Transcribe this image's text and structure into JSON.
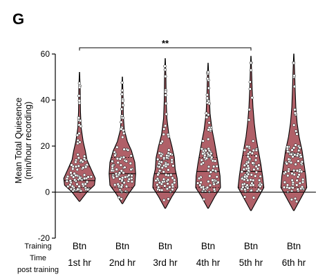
{
  "panel_label": "G",
  "chart_data": {
    "type": "violin",
    "ylabel_line1": "Mean Total Quiesence",
    "ylabel_line2": "(min/hour recording)",
    "ylim": [
      -20,
      60
    ],
    "yticks": [
      -20,
      0,
      20,
      40,
      60
    ],
    "row_labels": [
      "Training",
      "Time",
      "post training"
    ],
    "fill_color": "#b06068",
    "point_color": "#ffffff",
    "categories": [
      {
        "training": "Btn",
        "time": "1st hr",
        "min": -4,
        "max": 52,
        "median": 5,
        "q1": 2,
        "q3": 11,
        "widths": [
          [
            -4,
            0.02
          ],
          [
            0,
            0.45
          ],
          [
            3,
            0.9
          ],
          [
            6,
            0.95
          ],
          [
            10,
            0.7
          ],
          [
            14,
            0.45
          ],
          [
            18,
            0.35
          ],
          [
            22,
            0.22
          ],
          [
            28,
            0.1
          ],
          [
            35,
            0.06
          ],
          [
            45,
            0.04
          ],
          [
            52,
            0.01
          ]
        ]
      },
      {
        "training": "Btn",
        "time": "2nd hr",
        "min": -5,
        "max": 50,
        "median": 8,
        "q1": 2,
        "q3": 15,
        "widths": [
          [
            -5,
            0.02
          ],
          [
            -1,
            0.35
          ],
          [
            3,
            0.75
          ],
          [
            8,
            0.8
          ],
          [
            13,
            0.75
          ],
          [
            18,
            0.55
          ],
          [
            22,
            0.3
          ],
          [
            27,
            0.12
          ],
          [
            33,
            0.06
          ],
          [
            42,
            0.04
          ],
          [
            50,
            0.01
          ]
        ]
      },
      {
        "training": "Btn",
        "time": "3rd hr",
        "min": -7,
        "max": 58,
        "median": 8,
        "q1": 2,
        "q3": 14,
        "widths": [
          [
            -7,
            0.02
          ],
          [
            -2,
            0.4
          ],
          [
            2,
            0.75
          ],
          [
            6,
            0.72
          ],
          [
            10,
            0.6
          ],
          [
            15,
            0.55
          ],
          [
            20,
            0.4
          ],
          [
            25,
            0.22
          ],
          [
            32,
            0.1
          ],
          [
            40,
            0.06
          ],
          [
            50,
            0.04
          ],
          [
            58,
            0.01
          ]
        ]
      },
      {
        "training": "Btn",
        "time": "4th hr",
        "min": -7,
        "max": 56,
        "median": 9,
        "q1": 2,
        "q3": 15,
        "widths": [
          [
            -7,
            0.02
          ],
          [
            -2,
            0.4
          ],
          [
            2,
            0.75
          ],
          [
            7,
            0.72
          ],
          [
            12,
            0.62
          ],
          [
            17,
            0.5
          ],
          [
            22,
            0.38
          ],
          [
            27,
            0.24
          ],
          [
            34,
            0.12
          ],
          [
            42,
            0.07
          ],
          [
            50,
            0.04
          ],
          [
            56,
            0.01
          ]
        ]
      },
      {
        "training": "Btn",
        "time": "5th hr",
        "min": -8,
        "max": 59,
        "median": 9,
        "q1": 2,
        "q3": 16,
        "widths": [
          [
            -8,
            0.02
          ],
          [
            -3,
            0.4
          ],
          [
            2,
            0.78
          ],
          [
            7,
            0.7
          ],
          [
            12,
            0.6
          ],
          [
            18,
            0.45
          ],
          [
            24,
            0.3
          ],
          [
            30,
            0.2
          ],
          [
            37,
            0.12
          ],
          [
            45,
            0.07
          ],
          [
            52,
            0.04
          ],
          [
            59,
            0.01
          ]
        ]
      },
      {
        "training": "Btn",
        "time": "6th hr",
        "min": -8,
        "max": 60,
        "median": 9,
        "q1": 2,
        "q3": 17,
        "widths": [
          [
            -8,
            0.02
          ],
          [
            -3,
            0.4
          ],
          [
            2,
            0.78
          ],
          [
            7,
            0.72
          ],
          [
            12,
            0.62
          ],
          [
            18,
            0.5
          ],
          [
            24,
            0.32
          ],
          [
            30,
            0.2
          ],
          [
            37,
            0.12
          ],
          [
            45,
            0.08
          ],
          [
            52,
            0.05
          ],
          [
            60,
            0.01
          ]
        ]
      }
    ],
    "significance": {
      "label": "**",
      "from_index": 0,
      "to_index": 4,
      "y": 61
    }
  }
}
